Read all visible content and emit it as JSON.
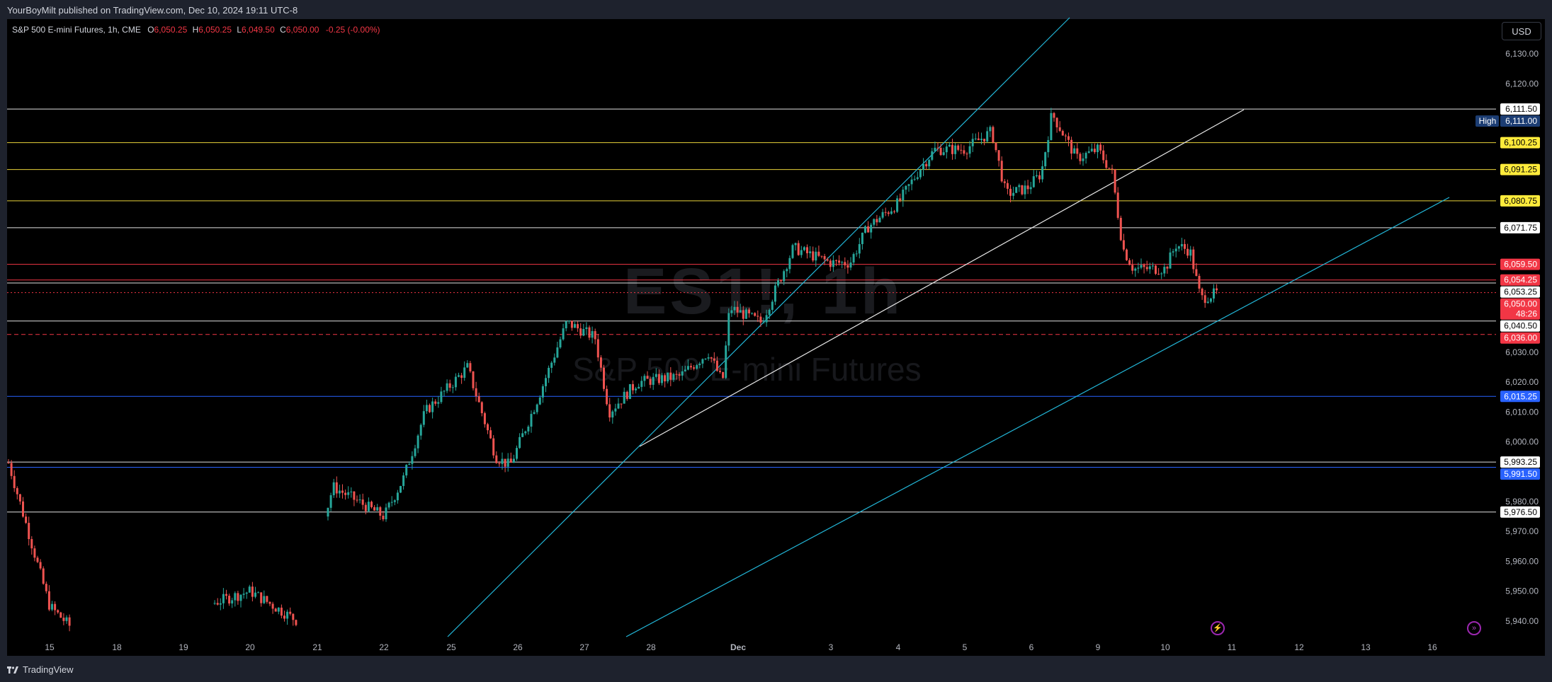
{
  "header": {
    "publisher_line": "YourBoyMilt published on TradingView.com, Dec 10, 2024 19:11 UTC-8"
  },
  "legend": {
    "instrument": "S&P 500 E-mini Futures, 1h, CME",
    "open_label": "O",
    "open": "6,050.25",
    "high_label": "H",
    "high": "6,050.25",
    "low_label": "L",
    "low": "6,049.50",
    "close_label": "C",
    "close": "6,050.00",
    "change": "-0.25 (-0.00%)"
  },
  "currency_button": "USD",
  "watermark": {
    "symbol": "ES1!, 1h",
    "name": "S&P 500 E-mini Futures"
  },
  "footer": {
    "brand": "TradingView"
  },
  "colors": {
    "background": "#000000",
    "up_candle": "#26a69a",
    "down_candle": "#ef5350",
    "trendline_cyan": "#22b5d6",
    "trendline_white": "#e8e8e8",
    "yellow_level": "#e8d23a",
    "red_level": "#f23645",
    "blue_level": "#2962ff"
  },
  "chart_data": {
    "type": "candlestick",
    "title": "S&P 500 E-mini Futures, 1h, CME",
    "y_axis": {
      "range": [
        5936,
        6146
      ],
      "ticks": [
        "6,130.00",
        "6,120.00",
        "6,030.00",
        "6,020.00",
        "6,010.00",
        "6,000.00",
        "5,980.00",
        "5,970.00",
        "5,960.00",
        "5,950.00",
        "5,940.00"
      ]
    },
    "x_axis": {
      "ticks": [
        "15",
        "18",
        "19",
        "20",
        "21",
        "22",
        "25",
        "26",
        "27",
        "28",
        "Dec",
        "3",
        "4",
        "5",
        "6",
        "9",
        "10",
        "11",
        "12",
        "13",
        "16"
      ]
    },
    "price_levels": [
      {
        "label": "6,111.50",
        "value": 6111.5,
        "style": "white"
      },
      {
        "label": "6,111.00",
        "value": 6111.0,
        "style": "navy",
        "prefix": "High"
      },
      {
        "label": "6,100.25",
        "value": 6100.25,
        "style": "yellow"
      },
      {
        "label": "6,091.25",
        "value": 6091.25,
        "style": "yellow"
      },
      {
        "label": "6,080.75",
        "value": 6080.75,
        "style": "yellow"
      },
      {
        "label": "6,071.75",
        "value": 6071.75,
        "style": "white"
      },
      {
        "label": "6,059.50",
        "value": 6059.5,
        "style": "red"
      },
      {
        "label": "6,054.25",
        "value": 6054.25,
        "style": "red"
      },
      {
        "label": "6,053.25",
        "value": 6053.25,
        "style": "white"
      },
      {
        "label": "6,050.00",
        "value": 6050.0,
        "style": "red-current",
        "sub": "48:26"
      },
      {
        "label": "6,040.50",
        "value": 6040.5,
        "style": "white"
      },
      {
        "label": "6,036.00",
        "value": 6036.0,
        "style": "red-dashed"
      },
      {
        "label": "6,015.25",
        "value": 6015.25,
        "style": "blue"
      },
      {
        "label": "5,993.25",
        "value": 5993.25,
        "style": "white"
      },
      {
        "label": "5,991.50",
        "value": 5991.5,
        "style": "blue"
      },
      {
        "label": "5,976.50",
        "value": 5976.5,
        "style": "white"
      }
    ],
    "session_closes": [
      {
        "x_label": "15",
        "close": 5955
      },
      {
        "x_label": "20",
        "close": 5950
      },
      {
        "x_label": "22",
        "close": 5975
      },
      {
        "x_label": "25",
        "close": 6010
      },
      {
        "x_label": "26",
        "close": 5995
      },
      {
        "x_label": "27",
        "close": 6040
      },
      {
        "x_label": "28",
        "close": 6025
      },
      {
        "x_label": "Dec",
        "close": 6045
      },
      {
        "x_label": "3",
        "close": 6060
      },
      {
        "x_label": "4",
        "close": 6080
      },
      {
        "x_label": "5",
        "close": 6098
      },
      {
        "x_label": "6",
        "close": 6085
      },
      {
        "x_label": "9",
        "close": 6092
      },
      {
        "x_label": "10",
        "close": 6060
      },
      {
        "x_label": "10",
        "close": 6050
      }
    ]
  }
}
